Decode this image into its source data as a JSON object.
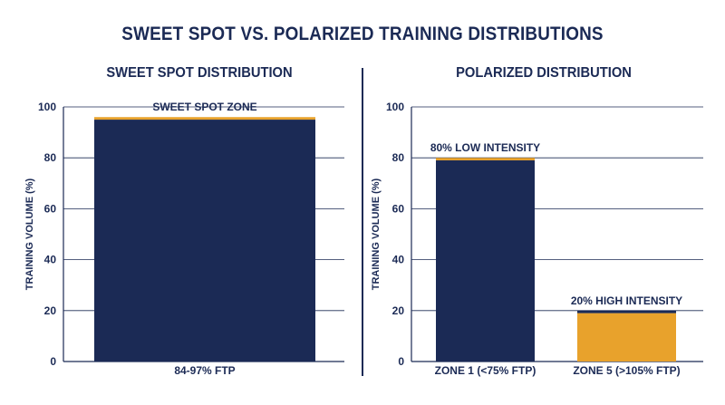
{
  "title": "SWEET SPOT VS. POLARIZED TRAINING DISTRIBUTIONS",
  "colors": {
    "navy": "#1b2a55",
    "gold": "#e8a22c",
    "grid": "#1b2a55"
  },
  "chart_data": [
    {
      "type": "bar",
      "title": "SWEET SPOT DISTRIBUTION",
      "ylabel": "TRAINING VOLUME (%)",
      "xlabel": "",
      "ylim": [
        0,
        100
      ],
      "yticks": [
        0,
        20,
        40,
        60,
        80,
        100
      ],
      "grid": true,
      "categories": [
        "84-97% FTP"
      ],
      "bars": [
        {
          "category": "84-97% FTP",
          "value": 96,
          "segments": [
            {
              "from": 0,
              "to": 95,
              "color": "#1b2a55"
            },
            {
              "from": 95,
              "to": 96,
              "color": "#e8a22c"
            }
          ]
        }
      ],
      "annotations": [
        {
          "text": "SWEET SPOT ZONE",
          "category": "84-97% FTP"
        }
      ]
    },
    {
      "type": "bar",
      "title": "POLARIZED DISTRIBUTION",
      "ylabel": "TRAINING VOLUME (%)",
      "xlabel": "",
      "ylim": [
        0,
        100
      ],
      "yticks": [
        0,
        20,
        40,
        60,
        80,
        100
      ],
      "grid": true,
      "categories": [
        "ZONE 1 (<75% FTP)",
        "ZONE 5 (>105% FTP)"
      ],
      "bars": [
        {
          "category": "ZONE 1 (<75% FTP)",
          "value": 80,
          "segments": [
            {
              "from": 0,
              "to": 79,
              "color": "#1b2a55"
            },
            {
              "from": 79,
              "to": 80,
              "color": "#e8a22c"
            }
          ]
        },
        {
          "category": "ZONE 5 (>105% FTP)",
          "value": 20,
          "segments": [
            {
              "from": 0,
              "to": 19,
              "color": "#e8a22c"
            },
            {
              "from": 19,
              "to": 20,
              "color": "#1b2a55"
            }
          ]
        }
      ],
      "annotations": [
        {
          "text": "80% LOW INTENSITY",
          "category": "ZONE 1 (<75% FTP)"
        },
        {
          "text": "20% HIGH INTENSITY",
          "category": "ZONE 5 (>105% FTP)"
        }
      ]
    }
  ]
}
